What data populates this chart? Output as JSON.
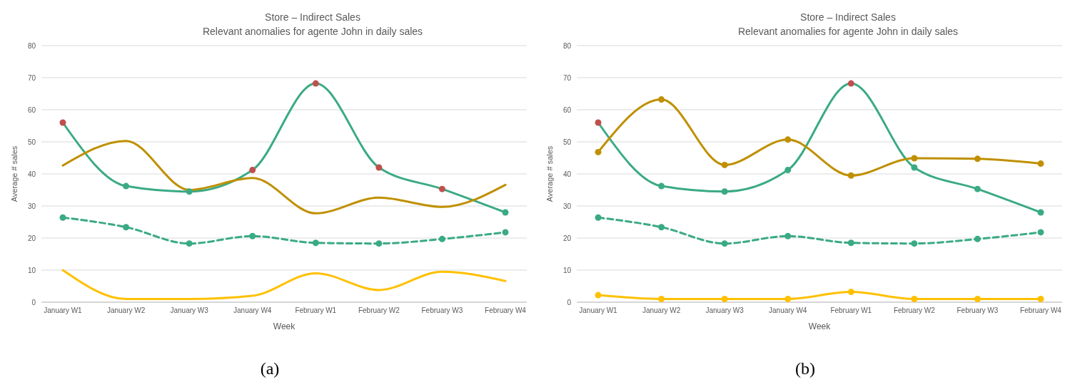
{
  "chart_data": [
    {
      "type": "line",
      "title": "Store – Indirect Sales",
      "subtitle": "Relevant anomalies for agente John in daily sales",
      "xlabel": "Week",
      "ylabel": "Average # sales",
      "annotations": [
        "(a)"
      ],
      "categories": [
        "January W1",
        "January W2",
        "January W3",
        "January W4",
        "February W1",
        "February W2",
        "February W3",
        "February W4"
      ],
      "ylim": [
        0,
        80
      ],
      "yticks": [
        0,
        10,
        20,
        30,
        40,
        50,
        60,
        70,
        80
      ],
      "grid": "y",
      "legend": false,
      "series": [
        {
          "color": "#3aaa85",
          "values": [
            56,
            36.2,
            34.5,
            41.2,
            68.2,
            42,
            35.3,
            28
          ],
          "colors": [
            "#c0504d",
            "#3aaa85",
            "#3aaa85",
            "#c0504d",
            "#c0504d",
            "#c0504d",
            "#c0504d",
            "#3aaa85"
          ],
          "marker": "circle",
          "line_style": "solid"
        },
        {
          "color": "#bf9000",
          "values": [
            42.6,
            50.3,
            35,
            38.7,
            27.7,
            32.6,
            29.7,
            36.6
          ],
          "marker": "none",
          "line_style": "solid"
        },
        {
          "color": "#3aaa85",
          "values": [
            26.4,
            23.4,
            18.3,
            20.6,
            18.5,
            18.3,
            19.7,
            21.8
          ],
          "marker": "circle",
          "line_style": "dashed"
        },
        {
          "color": "#ffc000",
          "values": [
            10,
            1,
            1,
            2,
            9,
            3.8,
            9.5,
            6.6
          ],
          "marker": "none",
          "line_style": "solid"
        }
      ]
    },
    {
      "type": "line",
      "title": "Store – Indirect Sales",
      "subtitle": "Relevant anomalies for agente John in daily sales",
      "xlabel": "Week",
      "ylabel": "Average # sales",
      "annotations": [
        "(b)"
      ],
      "categories": [
        "January W1",
        "January W2",
        "January W3",
        "January W4",
        "February W1",
        "February W2",
        "February W3",
        "February W4"
      ],
      "ylim": [
        0,
        80
      ],
      "yticks": [
        0,
        10,
        20,
        30,
        40,
        50,
        60,
        70,
        80
      ],
      "grid": "y",
      "legend": false,
      "series": [
        {
          "color": "#3aaa85",
          "values": [
            56,
            36.2,
            34.5,
            41.2,
            68.2,
            42,
            35.3,
            28
          ],
          "colors": [
            "#c0504d",
            "#3aaa85",
            "#3aaa85",
            "#3aaa85",
            "#c0504d",
            "#3aaa85",
            "#3aaa85",
            "#3aaa85"
          ],
          "marker": "circle",
          "line_style": "solid"
        },
        {
          "color": "#bf9000",
          "values": [
            46.8,
            63.2,
            42.8,
            50.7,
            39.5,
            44.9,
            44.7,
            43.2
          ],
          "marker": "circle",
          "line_style": "solid"
        },
        {
          "color": "#3aaa85",
          "values": [
            26.4,
            23.4,
            18.3,
            20.6,
            18.5,
            18.3,
            19.7,
            21.8
          ],
          "marker": "circle",
          "line_style": "dashed"
        },
        {
          "color": "#ffc000",
          "values": [
            2.2,
            1,
            1,
            1,
            3.2,
            1,
            1,
            1
          ],
          "marker": "circle",
          "line_style": "solid"
        }
      ]
    }
  ]
}
